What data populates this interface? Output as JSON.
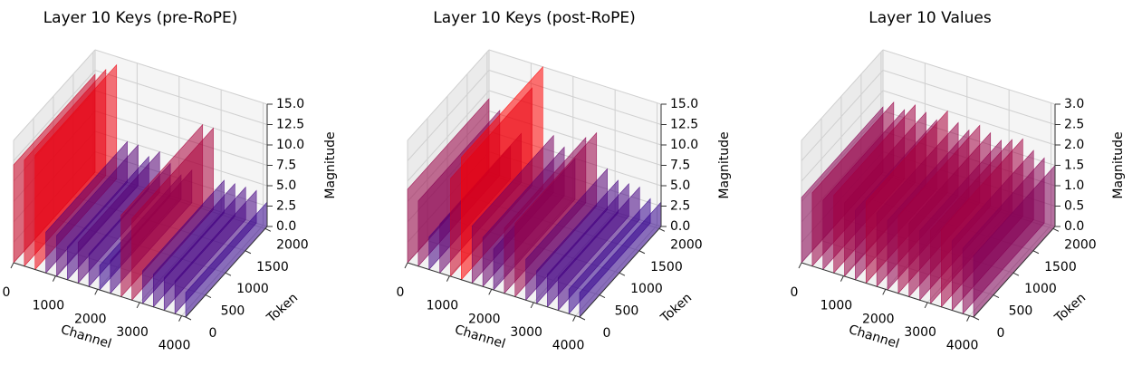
{
  "chart_data": [
    {
      "type": "surface3d",
      "title": "Layer 10 Keys (pre-RoPE)",
      "xlabel": "Channel",
      "ylabel": "Token",
      "zlabel": "Magnitude",
      "x": [
        0,
        256,
        512,
        768,
        1024,
        1280,
        1536,
        1792,
        2048,
        2304,
        2560,
        2816,
        3072,
        3328,
        3584,
        3840,
        4096
      ],
      "values": [
        12,
        13,
        14,
        5,
        5,
        4,
        5,
        4,
        3,
        4,
        10,
        10,
        4,
        4,
        4,
        4,
        3
      ],
      "xlim": [
        0,
        4096
      ],
      "xticks": [
        0,
        1000,
        2000,
        3000,
        4000
      ],
      "ylim": [
        0,
        2048
      ],
      "yticks": [
        0,
        500,
        1000,
        1500,
        2000
      ],
      "zlim": [
        0,
        15
      ],
      "zticks": [
        {
          "value": 0,
          "label": "0.0"
        },
        2.5,
        {
          "value": 5,
          "label": "5.0"
        },
        7.5,
        {
          "value": 10,
          "label": "10.0"
        },
        12.5,
        {
          "value": 15,
          "label": "15.0"
        }
      ],
      "color_low": "#0000b0",
      "color_high": "#ff0000",
      "grid": true
    },
    {
      "type": "surface3d",
      "title": "Layer 10 Keys (post-RoPE)",
      "xlabel": "Channel",
      "ylabel": "Token",
      "zlabel": "Magnitude",
      "x": [
        0,
        256,
        512,
        768,
        1024,
        1280,
        1536,
        1792,
        2048,
        2304,
        2560,
        2816,
        3072,
        3328,
        3584,
        3840,
        4096
      ],
      "values": [
        9,
        8,
        4,
        6,
        12,
        15,
        7,
        6,
        5,
        8,
        9,
        5,
        4,
        4,
        4,
        3,
        3
      ],
      "xlim": [
        0,
        4096
      ],
      "xticks": [
        0,
        1000,
        2000,
        3000,
        4000
      ],
      "ylim": [
        0,
        2048
      ],
      "yticks": [
        0,
        500,
        1000,
        1500,
        2000
      ],
      "zlim": [
        0,
        15
      ],
      "zticks": [
        {
          "value": 0,
          "label": "0.0"
        },
        2.5,
        {
          "value": 5,
          "label": "5.0"
        },
        7.5,
        {
          "value": 10,
          "label": "10.0"
        },
        12.5,
        {
          "value": 15,
          "label": "15.0"
        }
      ],
      "color_low": "#0000b0",
      "color_high": "#ff0000",
      "grid": true
    },
    {
      "type": "surface3d",
      "title": "Layer 10 Values",
      "xlabel": "Channel",
      "ylabel": "Token",
      "zlabel": "Magnitude",
      "x": [
        0,
        256,
        512,
        768,
        1024,
        1280,
        1536,
        1792,
        2048,
        2304,
        2560,
        2816,
        3072,
        3328,
        3584,
        3840,
        4096
      ],
      "values": [
        1.6,
        1.8,
        1.7,
        1.9,
        1.8,
        1.7,
        2.0,
        1.8,
        1.7,
        1.9,
        1.8,
        1.7,
        1.8,
        1.9,
        1.7,
        1.6,
        1.5
      ],
      "xlim": [
        0,
        4096
      ],
      "xticks": [
        0,
        1000,
        2000,
        3000,
        4000
      ],
      "ylim": [
        0,
        2048
      ],
      "yticks": [
        0,
        500,
        1000,
        1500,
        2000
      ],
      "zlim": [
        0,
        3
      ],
      "zticks": [
        {
          "value": 0,
          "label": "0.0"
        },
        0.5,
        {
          "value": 1,
          "label": "1.0"
        },
        1.5,
        {
          "value": 2,
          "label": "2.0"
        },
        2.5,
        {
          "value": 3,
          "label": "3.0"
        }
      ],
      "color_low": "#0000b0",
      "color_high": "#ff0000",
      "grid": true
    }
  ]
}
